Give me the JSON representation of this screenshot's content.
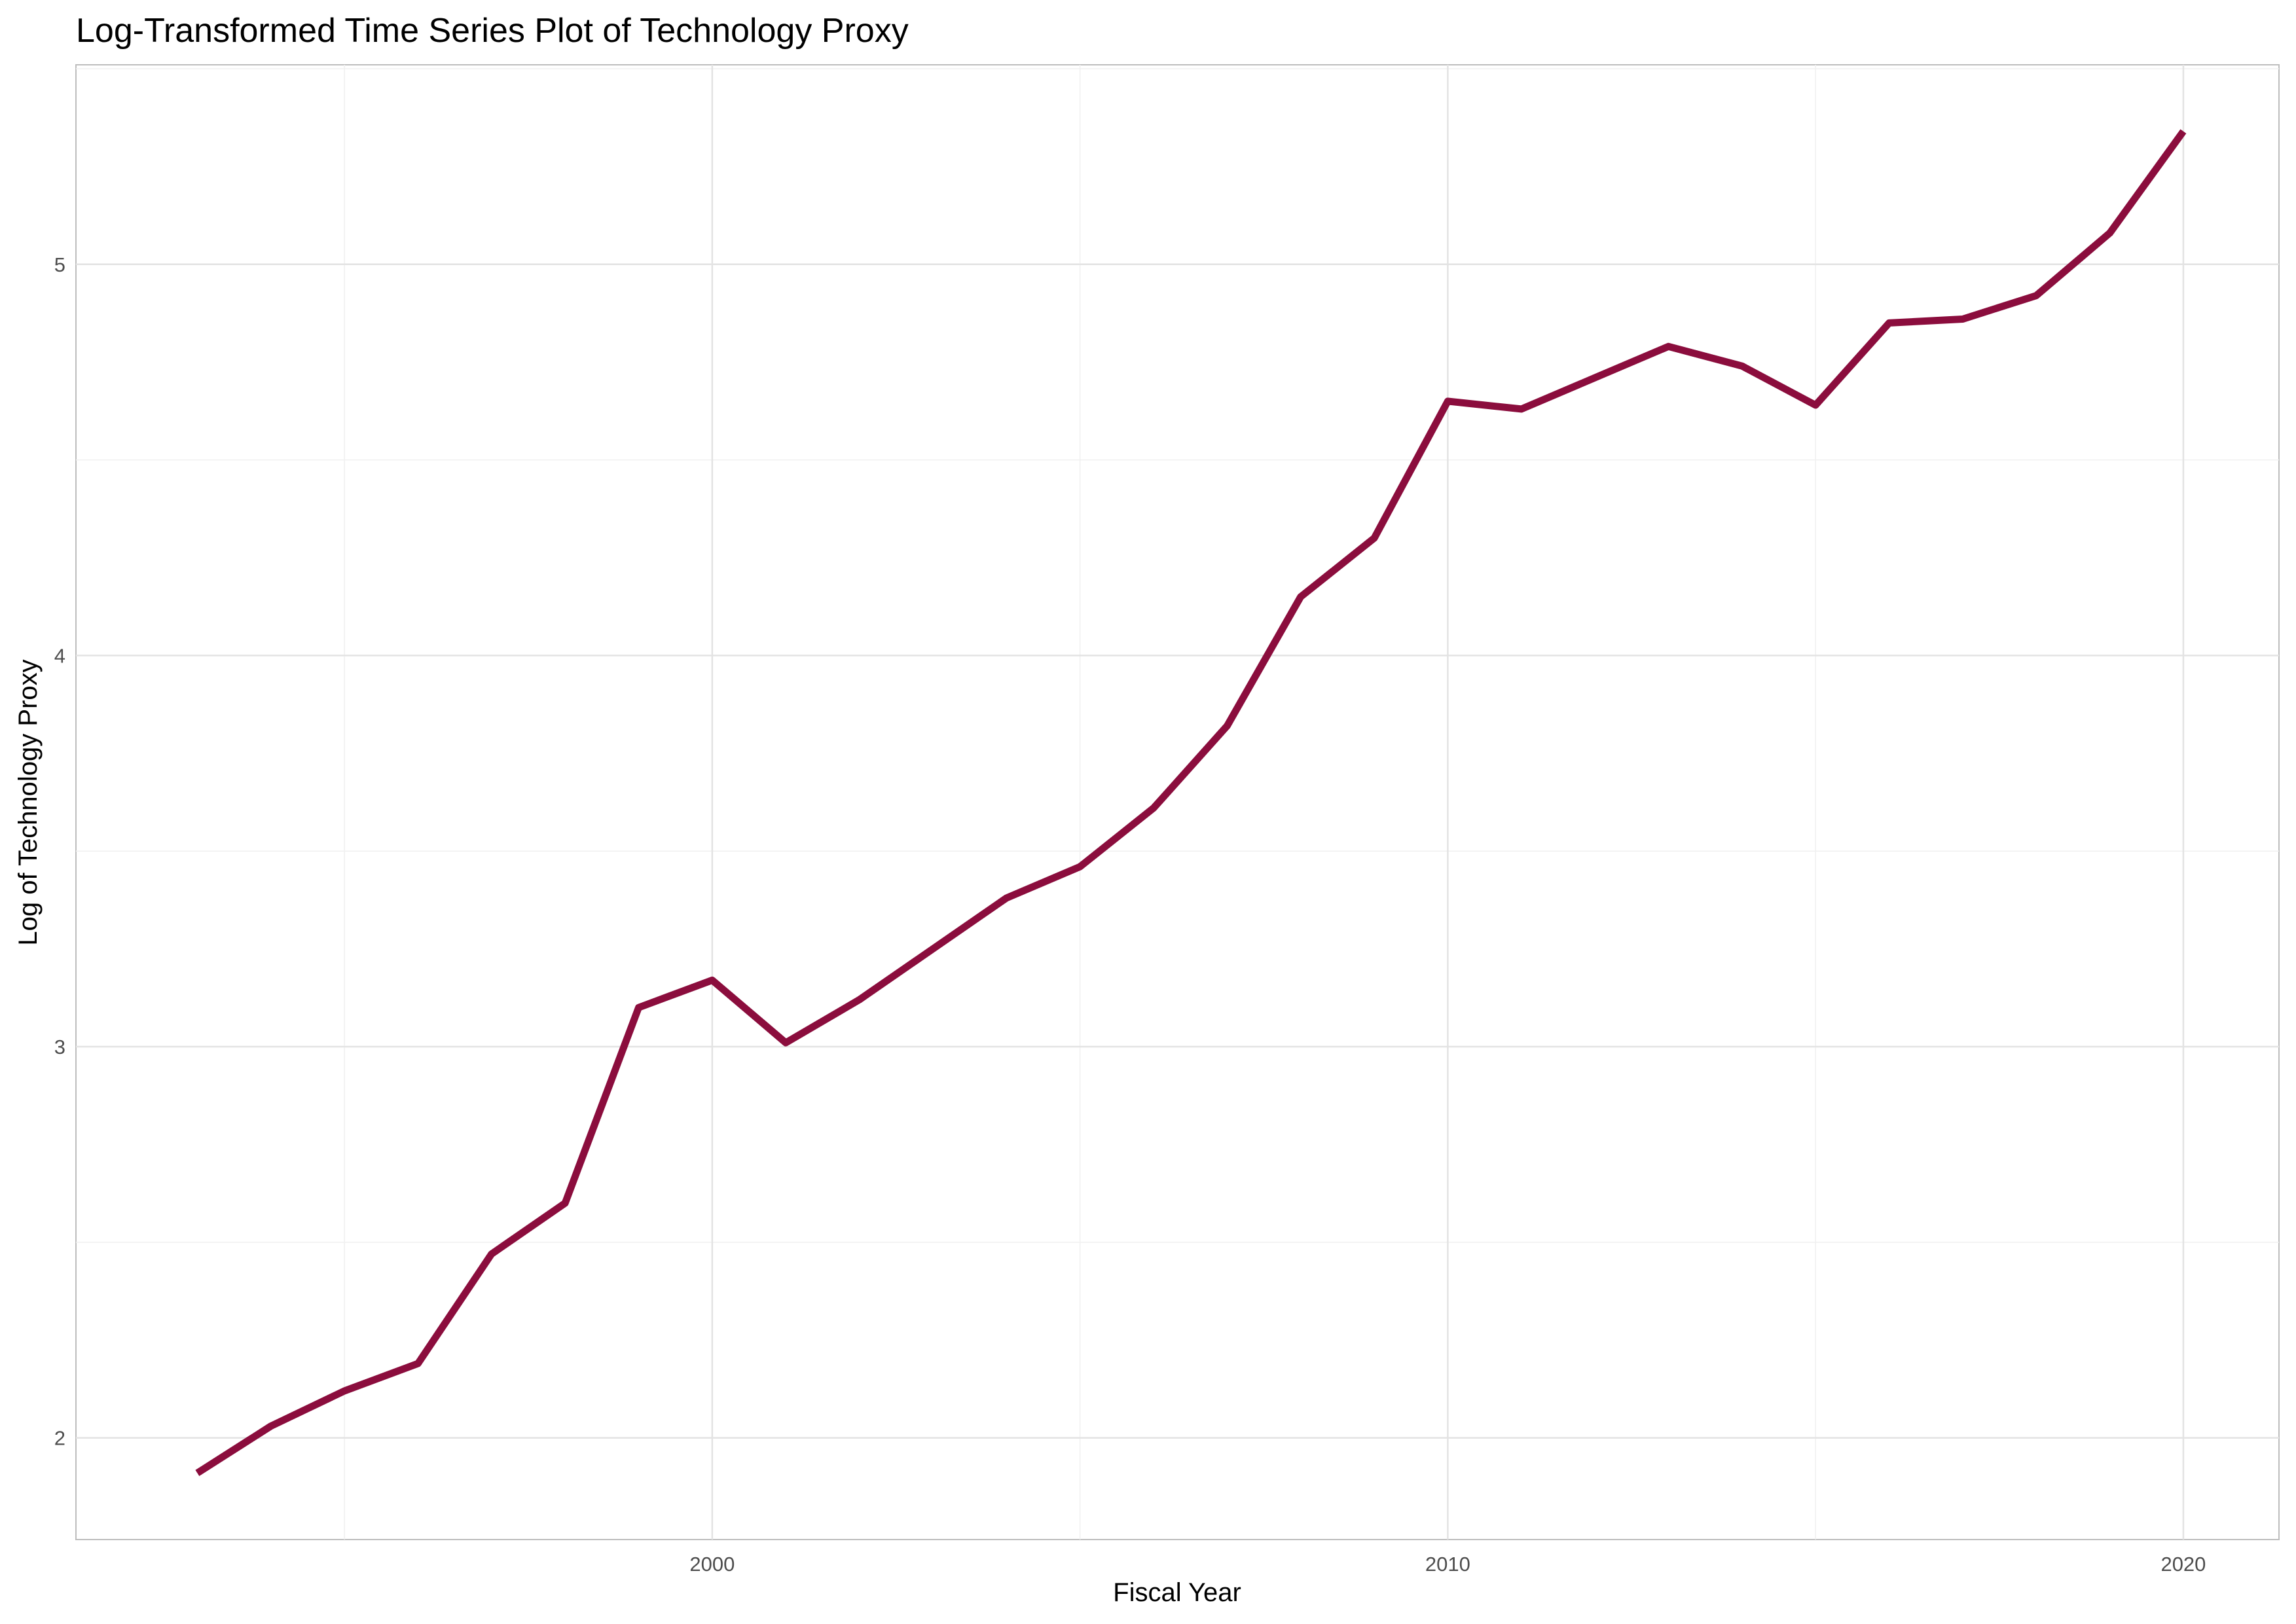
{
  "chart_data": {
    "type": "line",
    "title": "Log-Transformed Time Series Plot of Technology Proxy",
    "xlabel": "Fiscal Year",
    "ylabel": "Log of Technology Proxy",
    "x_ticks": [
      2000,
      2010,
      2020
    ],
    "y_ticks": [
      2,
      3,
      4,
      5
    ],
    "xlim": [
      1991.35,
      2021.3
    ],
    "ylim": [
      1.74,
      5.51
    ],
    "grid": true,
    "legend": "none",
    "line_color": "#8b0d3d",
    "series": [
      {
        "x": [
          1993,
          1994,
          1995,
          1996,
          1997,
          1998,
          1999,
          2000,
          2001,
          2002,
          2003,
          2004,
          2005,
          2006,
          2007,
          2008,
          2009,
          2010,
          2011,
          2012,
          2013,
          2014,
          2015,
          2016,
          2017,
          2018,
          2019,
          2020
        ],
        "values": [
          1.91,
          2.03,
          2.12,
          2.19,
          2.47,
          2.6,
          3.1,
          3.17,
          3.01,
          3.12,
          3.25,
          3.38,
          3.46,
          3.61,
          3.82,
          4.15,
          4.3,
          4.65,
          4.63,
          4.71,
          4.79,
          4.74,
          4.64,
          4.85,
          4.86,
          4.92,
          5.08,
          5.34
        ]
      }
    ]
  }
}
